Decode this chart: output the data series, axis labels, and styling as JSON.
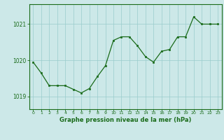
{
  "x": [
    0,
    1,
    2,
    3,
    4,
    5,
    6,
    7,
    8,
    9,
    10,
    11,
    12,
    13,
    14,
    15,
    16,
    17,
    18,
    19,
    20,
    21,
    22,
    23
  ],
  "y": [
    1019.95,
    1019.65,
    1019.3,
    1019.3,
    1019.3,
    1019.2,
    1019.1,
    1019.22,
    1019.55,
    1019.85,
    1020.55,
    1020.65,
    1020.65,
    1020.4,
    1020.1,
    1019.95,
    1020.25,
    1020.3,
    1020.65,
    1020.65,
    1021.2,
    1021.0,
    1021.0,
    1021.0
  ],
  "line_color": "#1a6b1a",
  "marker_color": "#1a6b1a",
  "bg_color": "#cce8e8",
  "grid_color": "#99cccc",
  "xlabel": "Graphe pression niveau de la mer (hPa)",
  "xlabel_color": "#1a6b1a",
  "tick_color": "#1a6b1a",
  "axis_color": "#1a6b1a",
  "ylim": [
    1018.65,
    1021.55
  ],
  "yticks": [
    1019,
    1020,
    1021
  ],
  "xlim": [
    -0.5,
    23.5
  ],
  "xticks": [
    0,
    1,
    2,
    3,
    4,
    5,
    6,
    7,
    8,
    9,
    10,
    11,
    12,
    13,
    14,
    15,
    16,
    17,
    18,
    19,
    20,
    21,
    22,
    23
  ]
}
